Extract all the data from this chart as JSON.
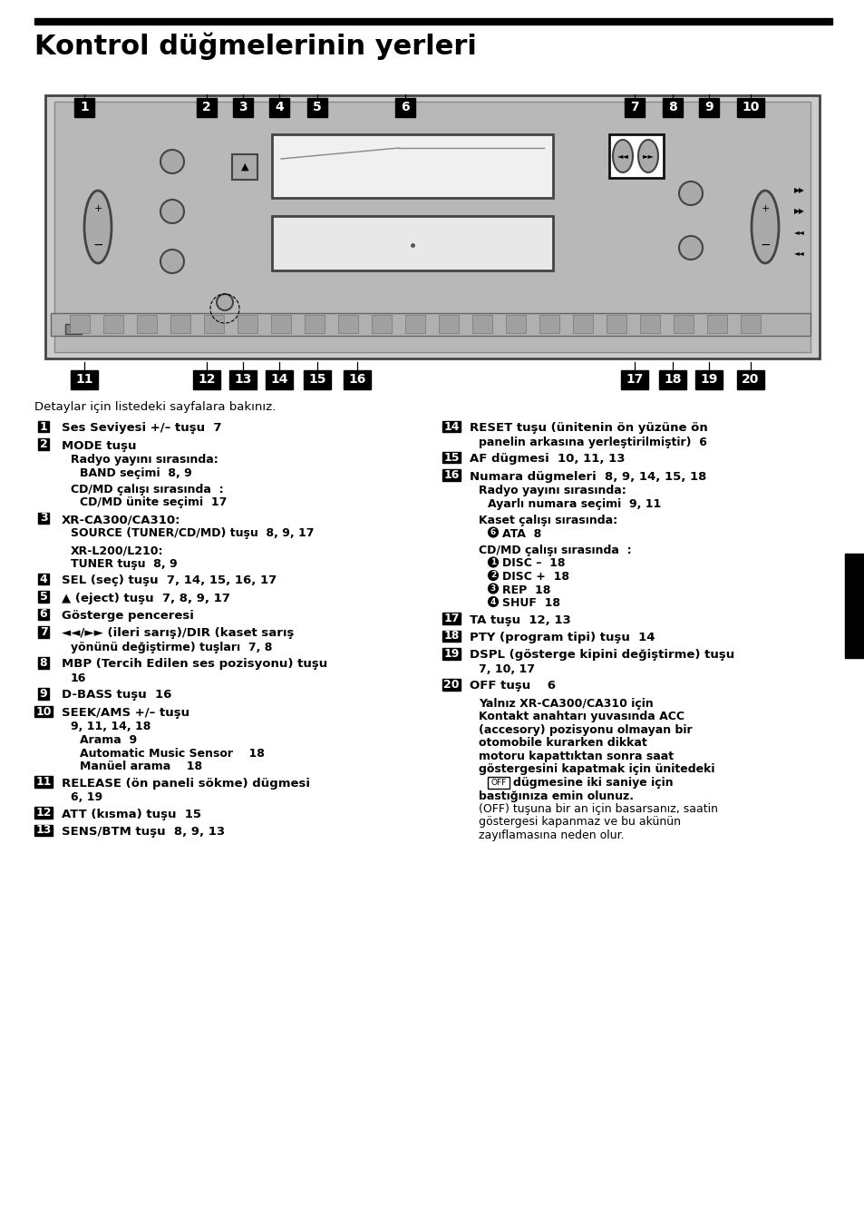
{
  "title": "Kontrol düğmelerinin yerleri",
  "bg_color": "#ffffff",
  "title_bar_color": "#000000",
  "intro_text": "Detaylar için listedeki sayfalara bakınız.",
  "left_column": [
    {
      "marker": "1",
      "bold_text": "Ses Seviyesi +/– tuşu  7",
      "sub": []
    },
    {
      "marker": "2",
      "bold_text": "MODE tuşu",
      "sub": [
        {
          "indent": 1,
          "bold": true,
          "text": "Radyo yayını sırasında:"
        },
        {
          "indent": 2,
          "bold": true,
          "text": "BAND seçimi  8, 9"
        },
        {
          "indent": 0,
          "bold": false,
          "text": ""
        },
        {
          "indent": 1,
          "bold": true,
          "text": "CD/MD çalışı sırasında  :"
        },
        {
          "indent": 2,
          "bold": true,
          "text": "CD/MD ünite seçimi  17"
        }
      ]
    },
    {
      "marker": "3",
      "bold_text": "XR-CA300/CA310:",
      "sub": [
        {
          "indent": 1,
          "bold": true,
          "text": "SOURCE (TUNER/CD/MD) tuşu  8, 9, 17"
        },
        {
          "indent": 0,
          "bold": false,
          "text": ""
        },
        {
          "indent": 1,
          "bold": true,
          "text": "XR-L200/L210:"
        },
        {
          "indent": 1,
          "bold": true,
          "text": "TUNER tuşu  8, 9"
        }
      ]
    },
    {
      "marker": "4",
      "bold_text": "SEL (seç) tuşu  7, 14, 15, 16, 17",
      "sub": []
    },
    {
      "marker": "5",
      "bold_text": "▲ (eject) tuşu  7, 8, 9, 17",
      "sub": []
    },
    {
      "marker": "6",
      "bold_text": "Gösterge penceresi",
      "sub": []
    },
    {
      "marker": "7",
      "bold_text": "◄◄/►► (ileri sarış)/DIR (kaset sarış",
      "sub": [
        {
          "indent": 1,
          "bold": true,
          "text": "yönünü değiştirme) tuşları  7, 8"
        }
      ]
    },
    {
      "marker": "8",
      "bold_text": "MBP (Tercih Edilen ses pozisyonu) tuşu",
      "sub": [
        {
          "indent": 1,
          "bold": true,
          "text": "16"
        }
      ]
    },
    {
      "marker": "9",
      "bold_text": "D-BASS tuşu  16",
      "sub": []
    },
    {
      "marker": "10",
      "bold_text": "SEEK/AMS +/– tuşu",
      "sub": [
        {
          "indent": 1,
          "bold": true,
          "text": "9, 11, 14, 18"
        },
        {
          "indent": 2,
          "bold": true,
          "text": "Arama  9"
        },
        {
          "indent": 2,
          "bold": true,
          "text": "Automatic Music Sensor    18"
        },
        {
          "indent": 2,
          "bold": true,
          "text": "Manüel arama    18"
        }
      ]
    },
    {
      "marker": "11",
      "bold_text": "RELEASE (ön paneli sökme) dügmesi",
      "sub": [
        {
          "indent": 1,
          "bold": true,
          "text": "6, 19"
        }
      ]
    },
    {
      "marker": "12",
      "bold_text": "ATT (kısma) tuşu  15",
      "sub": []
    },
    {
      "marker": "13",
      "bold_text": "SENS/BTM tuşu  8, 9, 13",
      "sub": []
    }
  ],
  "right_column": [
    {
      "marker": "14",
      "bold_text": "RESET tuşu (ünitenin ön yüzüne ön",
      "sub": [
        {
          "indent": 1,
          "bold": true,
          "text": "panelin arkasına yerleştirilmiştir)  6"
        }
      ]
    },
    {
      "marker": "15",
      "bold_text": "AF dügmesi  10, 11, 13",
      "sub": []
    },
    {
      "marker": "16",
      "bold_text": "Numara dügmeleri  8, 9, 14, 15, 18",
      "sub": [
        {
          "indent": 1,
          "bold": true,
          "text": "Radyo yayını sırasında:"
        },
        {
          "indent": 2,
          "bold": true,
          "text": "Ayarlı numara seçimi  9, 11"
        },
        {
          "indent": 0,
          "bold": false,
          "text": ""
        },
        {
          "indent": 1,
          "bold": true,
          "text": "Kaset çalışı sırasında:"
        },
        {
          "indent": 2,
          "circ": "6",
          "bold": true,
          "text": "ATA  8"
        },
        {
          "indent": 0,
          "bold": false,
          "text": ""
        },
        {
          "indent": 1,
          "bold": true,
          "text": "CD/MD çalışı sırasında  :"
        },
        {
          "indent": 2,
          "circ": "1",
          "bold": true,
          "text": "DISC –  18"
        },
        {
          "indent": 2,
          "circ": "2",
          "bold": true,
          "text": "DISC +  18"
        },
        {
          "indent": 2,
          "circ": "3",
          "bold": true,
          "text": "REP  18"
        },
        {
          "indent": 2,
          "circ": "4",
          "bold": true,
          "text": "SHUF  18"
        }
      ]
    },
    {
      "marker": "17",
      "bold_text": "TA tuşu  12, 13",
      "sub": []
    },
    {
      "marker": "18",
      "bold_text": "PTY (program tipi) tuşu  14",
      "sub": []
    },
    {
      "marker": "19",
      "bold_text": "DSPL (gösterge kipini değiştirme) tuşu",
      "sub": [
        {
          "indent": 1,
          "bold": true,
          "text": "7, 10, 17"
        }
      ]
    },
    {
      "marker": "20",
      "bold_text": "OFF tuşu    6",
      "sub": [
        {
          "indent": 0,
          "bold": false,
          "text": ""
        },
        {
          "indent": 1,
          "bold": true,
          "text": "Yalnız XR-CA300/CA310 için"
        },
        {
          "indent": 1,
          "bold": true,
          "text": "Kontakt anahtarı yuvasında ACC"
        },
        {
          "indent": 1,
          "bold": true,
          "text": "(accesory) pozisyonu olmayan bir"
        },
        {
          "indent": 1,
          "bold": true,
          "text": "otomobile kurarken dikkat"
        },
        {
          "indent": 1,
          "bold": true,
          "text": "motoru kapattıktan sonra saat"
        },
        {
          "indent": 1,
          "bold": true,
          "text": "göstergesini kapatmak için ünitedeki"
        },
        {
          "indent": 2,
          "circ_rect": "OFF",
          "bold": true,
          "text": "dügmesine iki saniye için"
        },
        {
          "indent": 1,
          "bold": true,
          "text": "bastığınıza emin olunuz."
        },
        {
          "indent": 1,
          "bold": false,
          "text": "(OFF) tuşuna bir an için basarsanız, saatin"
        },
        {
          "indent": 1,
          "bold": false,
          "text": "göstergesi kapanmaz ve bu akünün"
        },
        {
          "indent": 1,
          "bold": false,
          "text": "zayıflamasına neden olur."
        }
      ]
    }
  ]
}
